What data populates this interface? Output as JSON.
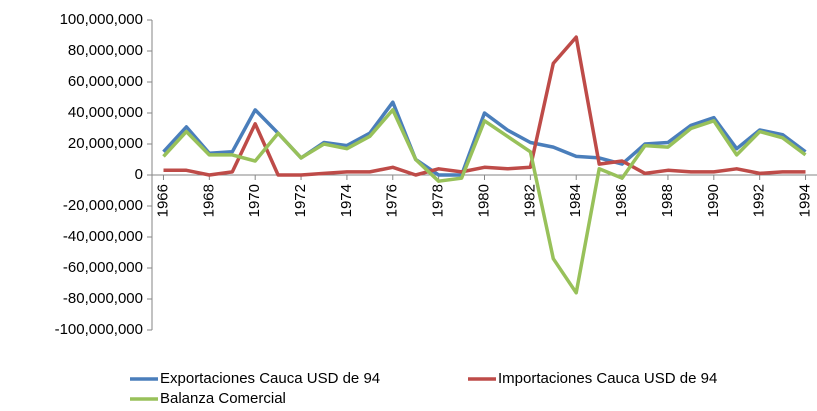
{
  "chart_data": {
    "type": "line",
    "x": [
      1966,
      1967,
      1968,
      1969,
      1970,
      1971,
      1972,
      1973,
      1974,
      1975,
      1976,
      1977,
      1978,
      1979,
      1980,
      1981,
      1982,
      1983,
      1984,
      1985,
      1986,
      1987,
      1988,
      1989,
      1990,
      1991,
      1992,
      1993,
      1994
    ],
    "xlim": [
      1965.5,
      1994.5
    ],
    "xticks": [
      1966,
      1968,
      1970,
      1972,
      1974,
      1976,
      1978,
      1980,
      1982,
      1984,
      1986,
      1988,
      1990,
      1992,
      1994
    ],
    "ylim": [
      -100000000,
      100000000
    ],
    "yticks": [
      {
        "value": -100000000,
        "label": "-100,000,000"
      },
      {
        "value": -80000000,
        "label": "-80,000,000"
      },
      {
        "value": -60000000,
        "label": "-60,000,000"
      },
      {
        "value": -40000000,
        "label": "-40,000,000"
      },
      {
        "value": -20000000,
        "label": "-20,000,000"
      },
      0,
      {
        "value": 20000000,
        "label": "20,000,000"
      },
      {
        "value": 40000000,
        "label": "40,000,000"
      },
      {
        "value": 60000000,
        "label": "60,000,000"
      },
      {
        "value": 80000000,
        "label": "80,000,000"
      },
      {
        "value": 100000000,
        "label": "100,000,000"
      }
    ],
    "series": [
      {
        "name": "Exportaciones Cauca USD de 94",
        "color": "#4a7ebb",
        "values": [
          15000000,
          31000000,
          14000000,
          15000000,
          42000000,
          27000000,
          11000000,
          21000000,
          19000000,
          27000000,
          47000000,
          10000000,
          0,
          0,
          40000000,
          29000000,
          21000000,
          18000000,
          12000000,
          11000000,
          7000000,
          20000000,
          21000000,
          32000000,
          37000000,
          17000000,
          29000000,
          26000000,
          15000000
        ]
      },
      {
        "name": "Importaciones Cauca USD de 94",
        "color": "#be4b48",
        "values": [
          3000000,
          3000000,
          0,
          2000000,
          33000000,
          0,
          0,
          1000000,
          2000000,
          2000000,
          5000000,
          0,
          4000000,
          2000000,
          5000000,
          4000000,
          5000000,
          72000000,
          89000000,
          7000000,
          9000000,
          1000000,
          3000000,
          2000000,
          2000000,
          4000000,
          1000000,
          2000000,
          2000000
        ]
      },
      {
        "name": "Balanza Comercial",
        "color": "#98c15a",
        "values": [
          12000000,
          28000000,
          13000000,
          13000000,
          9000000,
          27000000,
          11000000,
          20000000,
          17000000,
          25000000,
          42000000,
          10000000,
          -4000000,
          -2000000,
          35000000,
          25000000,
          15000000,
          -54000000,
          -76000000,
          4000000,
          -2000000,
          19000000,
          18000000,
          30000000,
          35000000,
          13000000,
          28000000,
          24000000,
          13000000
        ]
      }
    ]
  }
}
